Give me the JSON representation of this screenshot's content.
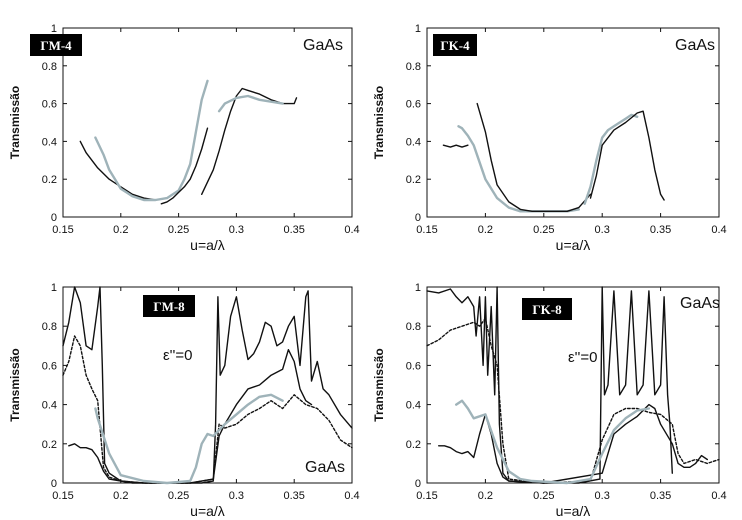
{
  "chart_data": [
    {
      "type": "line",
      "panel_label": "ΓM-4",
      "material": "GaAs",
      "annotation": "",
      "xlabel": "u=a/λ",
      "ylabel": "Transmissão",
      "xlim": [
        0.15,
        0.4
      ],
      "ylim": [
        0,
        1
      ],
      "xticks": [
        "0.15",
        "0.2",
        "0.25",
        "0.3",
        "0.35",
        "0.4"
      ],
      "yticks": [
        "0",
        "0.2",
        "0.4",
        "0.6",
        "0.8",
        "1"
      ],
      "series": [
        {
          "color": "#111111",
          "style": "solid",
          "x": [
            0.165,
            0.17,
            0.18,
            0.19,
            0.2,
            0.21,
            0.22,
            0.23,
            0.24
          ],
          "y": [
            0.4,
            0.34,
            0.26,
            0.2,
            0.16,
            0.12,
            0.1,
            0.09,
            0.1
          ]
        },
        {
          "color": "#9fb3b9",
          "style": "solid",
          "x": [
            0.178,
            0.185,
            0.19,
            0.2,
            0.21,
            0.22,
            0.23,
            0.24,
            0.25,
            0.255,
            0.26,
            0.265,
            0.27,
            0.275
          ],
          "y": [
            0.42,
            0.33,
            0.25,
            0.15,
            0.11,
            0.09,
            0.09,
            0.1,
            0.14,
            0.2,
            0.28,
            0.45,
            0.62,
            0.72
          ]
        },
        {
          "color": "#111111",
          "style": "solid",
          "x": [
            0.235,
            0.24,
            0.245,
            0.25,
            0.255,
            0.26,
            0.265,
            0.27,
            0.275
          ],
          "y": [
            0.07,
            0.08,
            0.1,
            0.13,
            0.16,
            0.2,
            0.27,
            0.36,
            0.47
          ]
        },
        {
          "color": "#111111",
          "style": "solid",
          "x": [
            0.27,
            0.28,
            0.285,
            0.29,
            0.295,
            0.3,
            0.305,
            0.31,
            0.32,
            0.33,
            0.34,
            0.35,
            0.352
          ],
          "y": [
            0.12,
            0.25,
            0.35,
            0.46,
            0.56,
            0.64,
            0.68,
            0.67,
            0.65,
            0.62,
            0.6,
            0.6,
            0.63
          ]
        },
        {
          "color": "#9fb3b9",
          "style": "solid",
          "x": [
            0.285,
            0.29,
            0.3,
            0.31,
            0.32,
            0.33,
            0.34
          ],
          "y": [
            0.56,
            0.6,
            0.63,
            0.64,
            0.62,
            0.61,
            0.6
          ]
        }
      ]
    },
    {
      "type": "line",
      "panel_label": "ΓK-4",
      "material": "GaAs",
      "annotation": "",
      "xlabel": "u=a/λ",
      "ylabel": "Transmissão",
      "xlim": [
        0.15,
        0.4
      ],
      "ylim": [
        0,
        1
      ],
      "xticks": [
        "0.15",
        "0.2",
        "0.25",
        "0.3",
        "0.35",
        "0.4"
      ],
      "yticks": [
        "0",
        "0.2",
        "0.4",
        "0.6",
        "0.8",
        "1"
      ],
      "series": [
        {
          "color": "#111111",
          "style": "solid",
          "x": [
            0.164,
            0.17,
            0.175,
            0.18,
            0.185
          ],
          "y": [
            0.38,
            0.37,
            0.38,
            0.37,
            0.38
          ]
        },
        {
          "color": "#9fb3b9",
          "style": "solid",
          "x": [
            0.177,
            0.18,
            0.185,
            0.19,
            0.2,
            0.21,
            0.22,
            0.23,
            0.24,
            0.25,
            0.26,
            0.27,
            0.28
          ],
          "y": [
            0.48,
            0.47,
            0.43,
            0.38,
            0.2,
            0.1,
            0.05,
            0.03,
            0.03,
            0.03,
            0.03,
            0.03,
            0.04
          ]
        },
        {
          "color": "#111111",
          "style": "solid",
          "x": [
            0.193,
            0.2,
            0.205,
            0.21,
            0.22,
            0.23,
            0.24,
            0.25,
            0.26,
            0.27,
            0.28,
            0.29
          ],
          "y": [
            0.6,
            0.45,
            0.3,
            0.17,
            0.08,
            0.04,
            0.03,
            0.03,
            0.03,
            0.03,
            0.05,
            0.12
          ]
        },
        {
          "color": "#9fb3b9",
          "style": "solid",
          "x": [
            0.285,
            0.29,
            0.295,
            0.3,
            0.305,
            0.31,
            0.315,
            0.32,
            0.325,
            0.33
          ],
          "y": [
            0.07,
            0.16,
            0.3,
            0.42,
            0.46,
            0.48,
            0.5,
            0.52,
            0.54,
            0.53
          ]
        },
        {
          "color": "#111111",
          "style": "solid",
          "x": [
            0.29,
            0.295,
            0.3,
            0.31,
            0.32,
            0.33,
            0.335,
            0.34,
            0.345,
            0.35,
            0.353
          ],
          "y": [
            0.1,
            0.22,
            0.38,
            0.46,
            0.5,
            0.55,
            0.56,
            0.42,
            0.25,
            0.12,
            0.09
          ]
        }
      ]
    },
    {
      "type": "line",
      "panel_label": "ΓM-8",
      "material": "GaAs",
      "annotation": "ε''=0",
      "xlabel": "u=a/λ",
      "ylabel": "Transmissão",
      "xlim": [
        0.15,
        0.4
      ],
      "ylim": [
        0,
        1
      ],
      "xticks": [
        "0.15",
        "0.2",
        "0.25",
        "0.3",
        "0.35",
        "0.4"
      ],
      "yticks": [
        "0",
        "0.2",
        "0.4",
        "0.6",
        "0.8",
        "1"
      ],
      "series": [
        {
          "color": "#111111",
          "style": "solid",
          "x": [
            0.15,
            0.155,
            0.16,
            0.165,
            0.17,
            0.175,
            0.18,
            0.182,
            0.184,
            0.186,
            0.19,
            0.2,
            0.21,
            0.22,
            0.25,
            0.27,
            0.28,
            0.282,
            0.284,
            0.286,
            0.29,
            0.295,
            0.3,
            0.305,
            0.31,
            0.315,
            0.32,
            0.325,
            0.33,
            0.335,
            0.34,
            0.345,
            0.35,
            0.355,
            0.36,
            0.362,
            0.365,
            0.37,
            0.375,
            0.38,
            0.39,
            0.4
          ],
          "y": [
            0.7,
            0.82,
            1.0,
            0.92,
            0.7,
            0.68,
            0.9,
            1.0,
            0.6,
            0.1,
            0.05,
            0.01,
            0.0,
            0.0,
            0.0,
            0.0,
            0.01,
            0.3,
            0.95,
            0.55,
            0.6,
            0.85,
            0.95,
            0.78,
            0.63,
            0.66,
            0.72,
            0.82,
            0.8,
            0.7,
            0.72,
            0.8,
            0.85,
            0.6,
            0.95,
            0.98,
            0.52,
            0.62,
            0.48,
            0.45,
            0.35,
            0.28
          ]
        },
        {
          "color": "#111111",
          "style": "dashed",
          "x": [
            0.15,
            0.155,
            0.16,
            0.165,
            0.17,
            0.175,
            0.18,
            0.185,
            0.19,
            0.2,
            0.22,
            0.26,
            0.28,
            0.285,
            0.29,
            0.3,
            0.31,
            0.32,
            0.33,
            0.34,
            0.35,
            0.36,
            0.37,
            0.38,
            0.39,
            0.4
          ],
          "y": [
            0.55,
            0.62,
            0.75,
            0.7,
            0.55,
            0.48,
            0.42,
            0.08,
            0.03,
            0.01,
            0.0,
            0.0,
            0.02,
            0.3,
            0.28,
            0.3,
            0.35,
            0.38,
            0.42,
            0.38,
            0.45,
            0.4,
            0.38,
            0.32,
            0.22,
            0.18
          ]
        },
        {
          "color": "#111111",
          "style": "solid",
          "x": [
            0.155,
            0.16,
            0.165,
            0.17,
            0.175,
            0.18,
            0.185,
            0.19,
            0.2,
            0.22,
            0.24,
            0.26,
            0.28,
            0.285,
            0.29,
            0.3,
            0.31,
            0.32,
            0.33,
            0.34,
            0.345,
            0.35,
            0.355,
            0.36,
            0.365
          ],
          "y": [
            0.19,
            0.2,
            0.18,
            0.18,
            0.17,
            0.13,
            0.06,
            0.02,
            0.01,
            0.0,
            0.0,
            0.0,
            0.02,
            0.24,
            0.3,
            0.4,
            0.48,
            0.5,
            0.55,
            0.58,
            0.68,
            0.62,
            0.48,
            0.42,
            0.4
          ]
        },
        {
          "color": "#9fb3b9",
          "style": "solid",
          "x": [
            0.178,
            0.18,
            0.19,
            0.2,
            0.22,
            0.24,
            0.26,
            0.265,
            0.27,
            0.275,
            0.28,
            0.29,
            0.3,
            0.31,
            0.32,
            0.33,
            0.34
          ],
          "y": [
            0.38,
            0.33,
            0.15,
            0.04,
            0.01,
            0.0,
            0.01,
            0.08,
            0.2,
            0.25,
            0.24,
            0.3,
            0.35,
            0.4,
            0.44,
            0.45,
            0.42
          ]
        }
      ]
    },
    {
      "type": "line",
      "panel_label": "ΓK-8",
      "material": "GaAs",
      "annotation": "ε''=0",
      "xlabel": "u=a/λ",
      "ylabel": "Transmissão",
      "xlim": [
        0.15,
        0.4
      ],
      "ylim": [
        0,
        1
      ],
      "xticks": [
        "0.15",
        "0.2",
        "0.25",
        "0.3",
        "0.35",
        "0.4"
      ],
      "yticks": [
        "0",
        "0.2",
        "0.4",
        "0.6",
        "0.8",
        "1"
      ],
      "series": [
        {
          "color": "#111111",
          "style": "solid",
          "x": [
            0.15,
            0.16,
            0.17,
            0.175,
            0.18,
            0.185,
            0.19,
            0.192,
            0.195,
            0.198,
            0.2,
            0.202,
            0.205,
            0.208,
            0.21,
            0.212,
            0.215,
            0.22,
            0.25,
            0.28,
            0.298,
            0.3,
            0.302,
            0.305,
            0.31,
            0.315,
            0.32,
            0.325,
            0.33,
            0.335,
            0.34,
            0.345,
            0.35,
            0.353,
            0.356,
            0.358,
            0.36
          ],
          "y": [
            0.98,
            0.97,
            0.99,
            0.95,
            0.92,
            0.95,
            0.9,
            0.75,
            0.95,
            0.6,
            0.95,
            0.55,
            0.9,
            0.45,
            1.0,
            0.3,
            0.05,
            0.01,
            0.0,
            0.0,
            0.02,
            1.0,
            0.45,
            0.5,
            0.98,
            0.45,
            0.5,
            0.98,
            0.45,
            0.5,
            0.98,
            0.45,
            0.5,
            0.95,
            0.45,
            0.3,
            0.05
          ]
        },
        {
          "color": "#111111",
          "style": "dashed",
          "x": [
            0.15,
            0.16,
            0.17,
            0.18,
            0.19,
            0.195,
            0.2,
            0.205,
            0.21,
            0.215,
            0.22,
            0.25,
            0.29,
            0.3,
            0.31,
            0.32,
            0.33,
            0.34,
            0.35,
            0.36,
            0.365,
            0.37,
            0.38,
            0.39,
            0.4
          ],
          "y": [
            0.7,
            0.73,
            0.78,
            0.8,
            0.82,
            0.8,
            0.84,
            0.7,
            0.6,
            0.2,
            0.02,
            0.0,
            0.01,
            0.22,
            0.35,
            0.38,
            0.38,
            0.36,
            0.35,
            0.3,
            0.15,
            0.1,
            0.12,
            0.1,
            0.12
          ]
        },
        {
          "color": "#111111",
          "style": "solid",
          "x": [
            0.16,
            0.165,
            0.17,
            0.175,
            0.18,
            0.185,
            0.19,
            0.195,
            0.2,
            0.205,
            0.21,
            0.215,
            0.22,
            0.25,
            0.3,
            0.305,
            0.31,
            0.32,
            0.33,
            0.34,
            0.345,
            0.35,
            0.36,
            0.365,
            0.37,
            0.375,
            0.38,
            0.385,
            0.39
          ],
          "y": [
            0.19,
            0.19,
            0.18,
            0.16,
            0.15,
            0.16,
            0.13,
            0.25,
            0.35,
            0.25,
            0.1,
            0.03,
            0.01,
            0.0,
            0.05,
            0.15,
            0.25,
            0.3,
            0.34,
            0.4,
            0.38,
            0.3,
            0.2,
            0.1,
            0.08,
            0.08,
            0.1,
            0.14,
            0.12
          ]
        },
        {
          "color": "#9fb3b9",
          "style": "solid",
          "x": [
            0.175,
            0.18,
            0.185,
            0.19,
            0.2,
            0.21,
            0.22,
            0.23,
            0.24,
            0.27,
            0.29,
            0.3,
            0.31,
            0.32,
            0.33,
            0.34
          ],
          "y": [
            0.4,
            0.42,
            0.38,
            0.33,
            0.35,
            0.18,
            0.06,
            0.02,
            0.01,
            0.0,
            0.02,
            0.15,
            0.27,
            0.33,
            0.37,
            0.38
          ]
        }
      ]
    }
  ]
}
